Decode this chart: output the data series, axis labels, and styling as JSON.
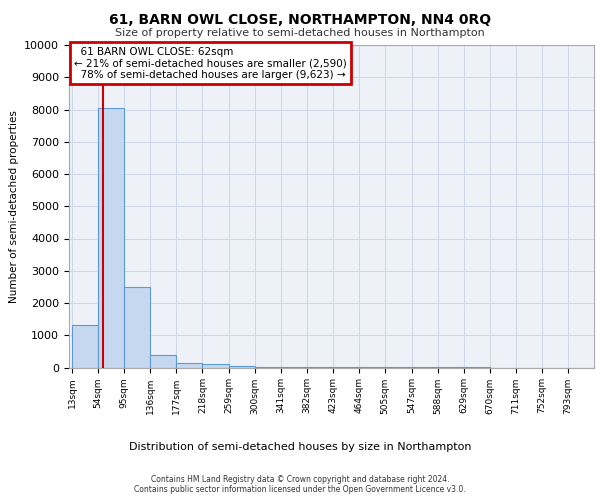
{
  "title": "61, BARN OWL CLOSE, NORTHAMPTON, NN4 0RQ",
  "subtitle": "Size of property relative to semi-detached houses in Northampton",
  "xlabel": "Distribution of semi-detached houses by size in Northampton",
  "ylabel": "Number of semi-detached properties",
  "footer_line1": "Contains HM Land Registry data © Crown copyright and database right 2024.",
  "footer_line2": "Contains public sector information licensed under the Open Government Licence v3.0.",
  "bar_edges": [
    13,
    54,
    95,
    136,
    177,
    218,
    259,
    300,
    341,
    382,
    423,
    464,
    505,
    547,
    588,
    629,
    670,
    711,
    752,
    793,
    834
  ],
  "bar_heights": [
    1320,
    8050,
    2500,
    380,
    130,
    100,
    50,
    20,
    10,
    5,
    3,
    2,
    2,
    1,
    1,
    1,
    0,
    0,
    0,
    0
  ],
  "bar_color": "#c5d8f0",
  "bar_edge_color": "#5b9bd5",
  "property_size": 62,
  "property_label": "61 BARN OWL CLOSE: 62sqm",
  "pct_smaller": 21,
  "n_smaller": "2,590",
  "pct_larger": 78,
  "n_larger": "9,623",
  "vline_color": "#cc0000",
  "annotation_box_color": "#cc0000",
  "ylim": [
    0,
    10000
  ],
  "yticks": [
    0,
    1000,
    2000,
    3000,
    4000,
    5000,
    6000,
    7000,
    8000,
    9000,
    10000
  ],
  "grid_color": "#d0d8e8",
  "bg_color": "#eef2f8"
}
